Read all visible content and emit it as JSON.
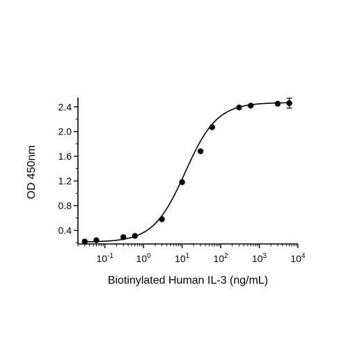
{
  "chart_data": {
    "type": "scatter",
    "title": "",
    "xlabel": "Biotinylated Human IL-3 (ng/mL)",
    "ylabel": "OD 450nm",
    "x_scale": "log",
    "xlim": [
      0.02,
      10000
    ],
    "ylim": [
      0.18,
      2.55
    ],
    "x_tick_labels": [
      {
        "value": 0.1,
        "base": "10",
        "exp": "-1"
      },
      {
        "value": 1,
        "base": "10",
        "exp": "0"
      },
      {
        "value": 10,
        "base": "10",
        "exp": "1"
      },
      {
        "value": 100,
        "base": "10",
        "exp": "2"
      },
      {
        "value": 1000,
        "base": "10",
        "exp": "3"
      },
      {
        "value": 10000,
        "base": "10",
        "exp": "4"
      }
    ],
    "y_ticks": [
      0.4,
      0.8,
      1.2,
      1.6,
      2.0,
      2.4
    ],
    "y_tick_labels": [
      "0.4",
      "0.8",
      "1.2",
      "1.6",
      "2.0",
      "2.4"
    ],
    "grid": false,
    "legend": "none",
    "fit": "4PL",
    "series": [
      {
        "x": [
          0.03,
          0.06,
          0.3,
          0.6,
          3,
          10,
          30,
          60,
          300,
          600,
          3000,
          6000
        ],
        "y": [
          0.22,
          0.24,
          0.29,
          0.31,
          0.58,
          1.18,
          1.68,
          2.07,
          2.39,
          2.42,
          2.45,
          2.46
        ],
        "error": [
          0,
          0,
          0,
          0,
          0,
          0,
          0,
          0,
          0,
          0,
          0,
          0.08
        ],
        "color": "#000000"
      }
    ]
  }
}
